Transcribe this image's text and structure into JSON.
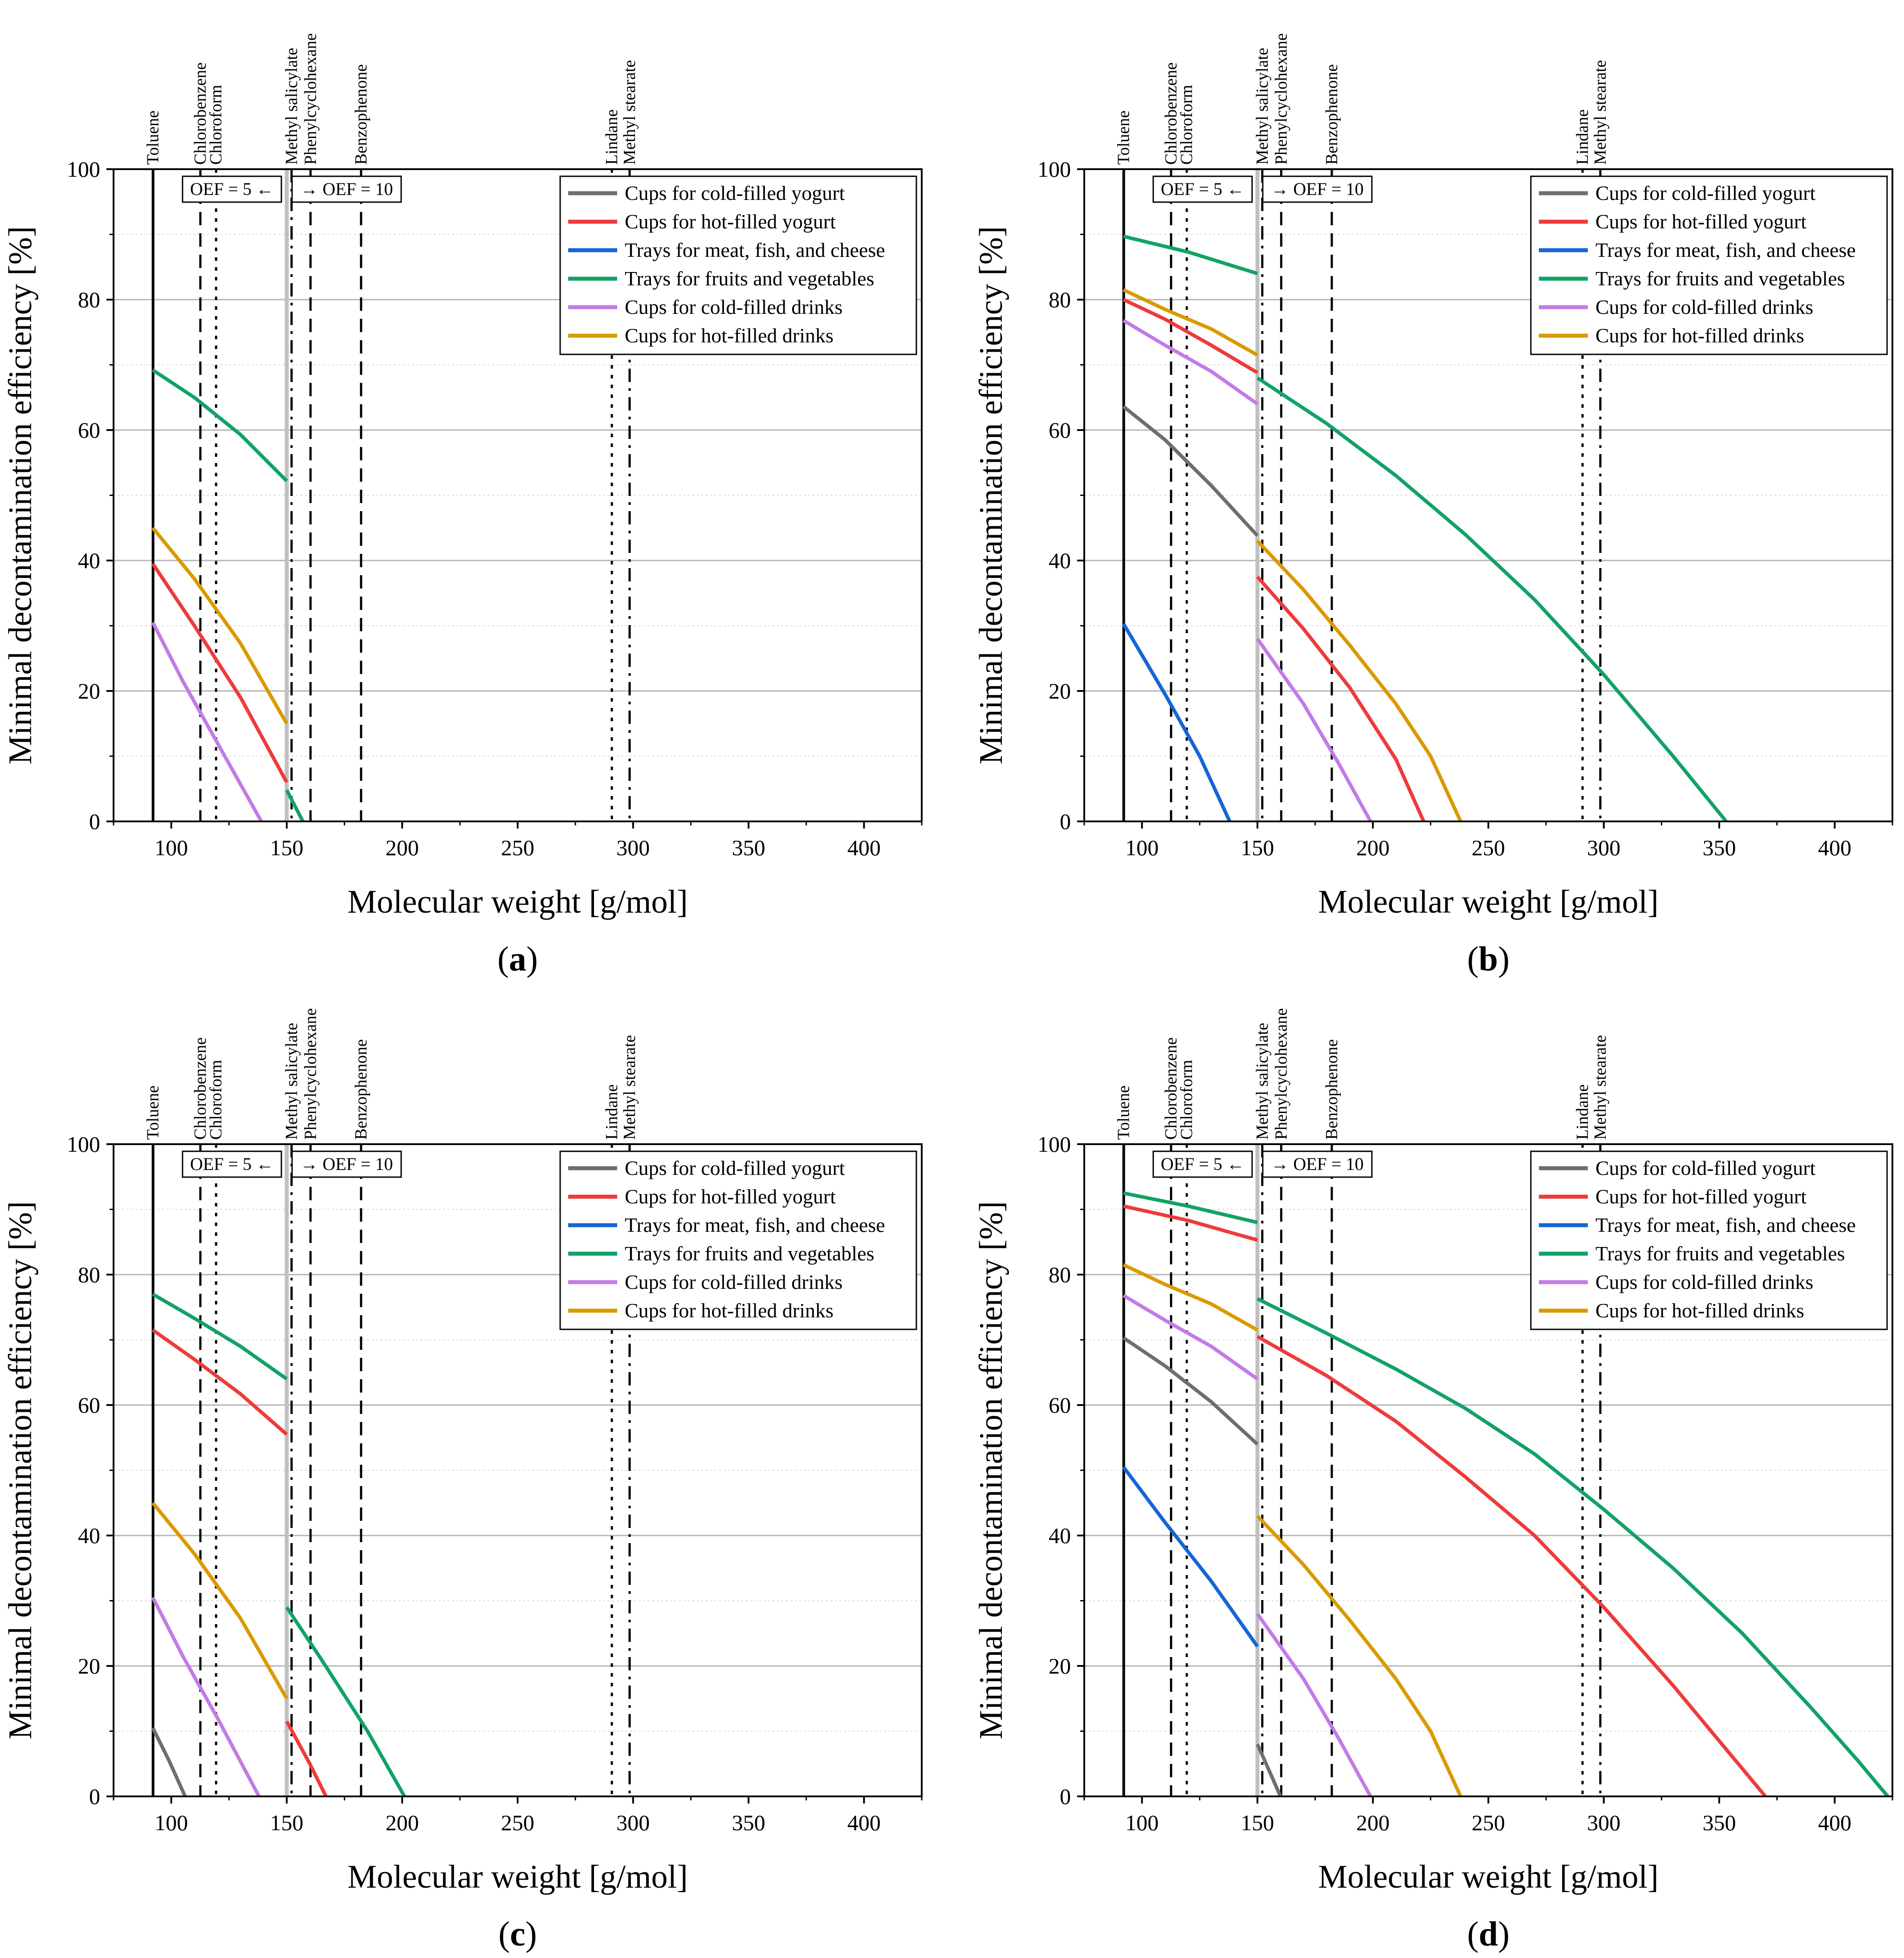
{
  "figure": {
    "x_label": "Molecular weight [g/mol]",
    "y_label": "Minimal decontamination efficiency [%]",
    "xlim": [
      75,
      425
    ],
    "ylim": [
      0,
      100
    ],
    "x_ticks": [
      100,
      150,
      200,
      250,
      300,
      350,
      400
    ],
    "y_ticks": [
      0,
      20,
      40,
      60,
      80,
      100
    ],
    "oef_left_label": "OEF = 5 ←",
    "oef_right_label": "→ OEF = 10",
    "colors": {
      "Cups for cold-filled yogurt": "#6e6e6e",
      "Cups for hot-filled yogurt": "#ee3b3b",
      "Trays for meat, fish, and cheese": "#1565d6",
      "Trays for fruits and vegetables": "#12a266",
      "Cups for cold-filled drinks": "#c27be6",
      "Cups for hot-filled drinks": "#d99a00"
    },
    "substances": [
      {
        "name": "Toluene",
        "mw": 92.1,
        "style": "solid"
      },
      {
        "name": "Chlorobenzene",
        "mw": 112.6,
        "style": "dashed"
      },
      {
        "name": "Chloroform",
        "mw": 119.4,
        "style": "dotted"
      },
      {
        "name": "Methyl salicylate",
        "mw": 152.1,
        "style": "dashdot"
      },
      {
        "name": "Phenylcyclohexane",
        "mw": 160.3,
        "style": "dashed"
      },
      {
        "name": "Benzophenone",
        "mw": 182.2,
        "style": "dashed"
      },
      {
        "name": "Lindane",
        "mw": 290.8,
        "style": "dotted"
      },
      {
        "name": "Methyl stearate",
        "mw": 298.5,
        "style": "dashdot"
      }
    ],
    "oef_boundary_mw": 150
  },
  "chart_data": [
    {
      "type": "line",
      "panel_label": "a",
      "title": "",
      "xlabel": "Molecular weight [g/mol]",
      "ylabel": "Minimal decontamination efficiency [%]",
      "xlim": [
        75,
        425
      ],
      "ylim": [
        0,
        100
      ],
      "legend": "top-right",
      "series": [
        {
          "name": "Cups for cold-filled yogurt",
          "segments": []
        },
        {
          "name": "Cups for hot-filled yogurt",
          "segments": [
            {
              "x": [
                92,
                110,
                130,
                150
              ],
              "y": [
                39.5,
                30,
                19,
                6
              ]
            }
          ]
        },
        {
          "name": "Trays for meat, fish, and cheese",
          "segments": []
        },
        {
          "name": "Trays for fruits and vegetables",
          "segments": [
            {
              "x": [
                92,
                110,
                130,
                150
              ],
              "y": [
                69.2,
                65,
                59.3,
                52.2
              ]
            },
            {
              "x": [
                150,
                157
              ],
              "y": [
                4.8,
                0
              ]
            }
          ]
        },
        {
          "name": "Cups for cold-filled drinks",
          "segments": [
            {
              "x": [
                92,
                105,
                120,
                139
              ],
              "y": [
                30.5,
                21.5,
                12,
                0
              ]
            }
          ]
        },
        {
          "name": "Cups for hot-filled drinks",
          "segments": [
            {
              "x": [
                92,
                110,
                130,
                150
              ],
              "y": [
                45,
                37.2,
                27.3,
                15
              ]
            }
          ]
        }
      ]
    },
    {
      "type": "line",
      "panel_label": "b",
      "title": "",
      "xlabel": "Molecular weight [g/mol]",
      "ylabel": "Minimal decontamination efficiency [%]",
      "xlim": [
        75,
        425
      ],
      "ylim": [
        0,
        100
      ],
      "legend": "top-right",
      "series": [
        {
          "name": "Cups for cold-filled yogurt",
          "segments": [
            {
              "x": [
                92,
                110,
                130,
                150
              ],
              "y": [
                63.6,
                58.5,
                51.5,
                43.8
              ]
            }
          ]
        },
        {
          "name": "Cups for hot-filled yogurt",
          "segments": [
            {
              "x": [
                92,
                110,
                130,
                150
              ],
              "y": [
                80,
                77,
                73,
                68.8
              ]
            },
            {
              "x": [
                150,
                170,
                190,
                210,
                222
              ],
              "y": [
                37.5,
                29.5,
                20.5,
                9.5,
                0
              ]
            }
          ]
        },
        {
          "name": "Trays for meat, fish, and cheese",
          "segments": [
            {
              "x": [
                92,
                110,
                125,
                138
              ],
              "y": [
                30.3,
                19.5,
                10,
                0
              ]
            }
          ]
        },
        {
          "name": "Trays for fruits and vegetables",
          "segments": [
            {
              "x": [
                92,
                120,
                150
              ],
              "y": [
                89.7,
                87.3,
                84
              ]
            },
            {
              "x": [
                150,
                180,
                210,
                240,
                270,
                300,
                330,
                353
              ],
              "y": [
                68,
                61,
                53,
                44,
                34,
                22.5,
                10,
                0
              ]
            }
          ]
        },
        {
          "name": "Cups for cold-filled drinks",
          "segments": [
            {
              "x": [
                92,
                110,
                130,
                150
              ],
              "y": [
                76.8,
                73,
                69,
                64
              ]
            },
            {
              "x": [
                150,
                170,
                185,
                199
              ],
              "y": [
                28,
                18,
                9,
                0
              ]
            }
          ]
        },
        {
          "name": "Cups for hot-filled drinks",
          "segments": [
            {
              "x": [
                92,
                110,
                130,
                150
              ],
              "y": [
                81.5,
                78.5,
                75.5,
                71.5
              ]
            },
            {
              "x": [
                150,
                170,
                190,
                210,
                225,
                238
              ],
              "y": [
                43,
                35.5,
                27,
                18,
                10,
                0
              ]
            }
          ]
        }
      ]
    },
    {
      "type": "line",
      "panel_label": "c",
      "title": "",
      "xlabel": "Molecular weight [g/mol]",
      "ylabel": "Minimal decontamination efficiency [%]",
      "xlim": [
        75,
        425
      ],
      "ylim": [
        0,
        100
      ],
      "legend": "top-right",
      "series": [
        {
          "name": "Cups for cold-filled yogurt",
          "segments": [
            {
              "x": [
                92,
                99,
                106
              ],
              "y": [
                10.5,
                5.5,
                0
              ]
            }
          ]
        },
        {
          "name": "Cups for hot-filled yogurt",
          "segments": [
            {
              "x": [
                92,
                110,
                130,
                150
              ],
              "y": [
                71.5,
                67,
                61.7,
                55.5
              ]
            },
            {
              "x": [
                150,
                160,
                167
              ],
              "y": [
                11.5,
                5,
                0
              ]
            }
          ]
        },
        {
          "name": "Trays for meat, fish, and cheese",
          "segments": []
        },
        {
          "name": "Trays for fruits and vegetables",
          "segments": [
            {
              "x": [
                92,
                110,
                130,
                150
              ],
              "y": [
                77,
                73.3,
                69,
                64
              ]
            },
            {
              "x": [
                150,
                165,
                185,
                201
              ],
              "y": [
                29,
                21,
                10,
                0
              ]
            }
          ]
        },
        {
          "name": "Cups for cold-filled drinks",
          "segments": [
            {
              "x": [
                92,
                105,
                120,
                138
              ],
              "y": [
                30.5,
                21.5,
                12,
                0
              ]
            }
          ]
        },
        {
          "name": "Cups for hot-filled drinks",
          "segments": [
            {
              "x": [
                92,
                110,
                130,
                150
              ],
              "y": [
                45,
                37.2,
                27.3,
                15
              ]
            }
          ]
        }
      ]
    },
    {
      "type": "line",
      "panel_label": "d",
      "title": "",
      "xlabel": "Molecular weight [g/mol]",
      "ylabel": "Minimal decontamination efficiency [%]",
      "xlim": [
        75,
        425
      ],
      "ylim": [
        0,
        100
      ],
      "legend": "top-right",
      "series": [
        {
          "name": "Cups for cold-filled yogurt",
          "segments": [
            {
              "x": [
                92,
                110,
                130,
                150
              ],
              "y": [
                70.3,
                66,
                60.5,
                54
              ]
            },
            {
              "x": [
                150,
                155,
                160
              ],
              "y": [
                8,
                4,
                0
              ]
            }
          ]
        },
        {
          "name": "Cups for hot-filled yogurt",
          "segments": [
            {
              "x": [
                92,
                120,
                150
              ],
              "y": [
                90.5,
                88.3,
                85.3
              ]
            },
            {
              "x": [
                150,
                180,
                210,
                240,
                270,
                300,
                330,
                350,
                370
              ],
              "y": [
                70.5,
                64.5,
                57.5,
                49,
                40,
                29,
                17,
                8.5,
                0
              ]
            }
          ]
        },
        {
          "name": "Trays for meat, fish, and cheese",
          "segments": [
            {
              "x": [
                92,
                110,
                130,
                150
              ],
              "y": [
                50.5,
                42,
                33,
                23
              ]
            }
          ]
        },
        {
          "name": "Trays for fruits and vegetables",
          "segments": [
            {
              "x": [
                92,
                120,
                150
              ],
              "y": [
                92.5,
                90.5,
                88
              ]
            },
            {
              "x": [
                150,
                180,
                210,
                240,
                270,
                300,
                330,
                360,
                390,
                410,
                423
              ],
              "y": [
                76.3,
                71,
                65.5,
                59.5,
                52.5,
                44,
                35,
                25,
                13.5,
                5.5,
                0
              ]
            }
          ]
        },
        {
          "name": "Cups for cold-filled drinks",
          "segments": [
            {
              "x": [
                92,
                110,
                130,
                150
              ],
              "y": [
                76.8,
                73,
                69,
                64
              ]
            },
            {
              "x": [
                150,
                170,
                185,
                199
              ],
              "y": [
                28,
                18,
                9,
                0
              ]
            }
          ]
        },
        {
          "name": "Cups for hot-filled drinks",
          "segments": [
            {
              "x": [
                92,
                110,
                130,
                150
              ],
              "y": [
                81.5,
                78.5,
                75.5,
                71.5
              ]
            },
            {
              "x": [
                150,
                170,
                190,
                210,
                225,
                238
              ],
              "y": [
                43,
                35.5,
                27,
                18,
                10,
                0
              ]
            }
          ]
        }
      ]
    }
  ]
}
